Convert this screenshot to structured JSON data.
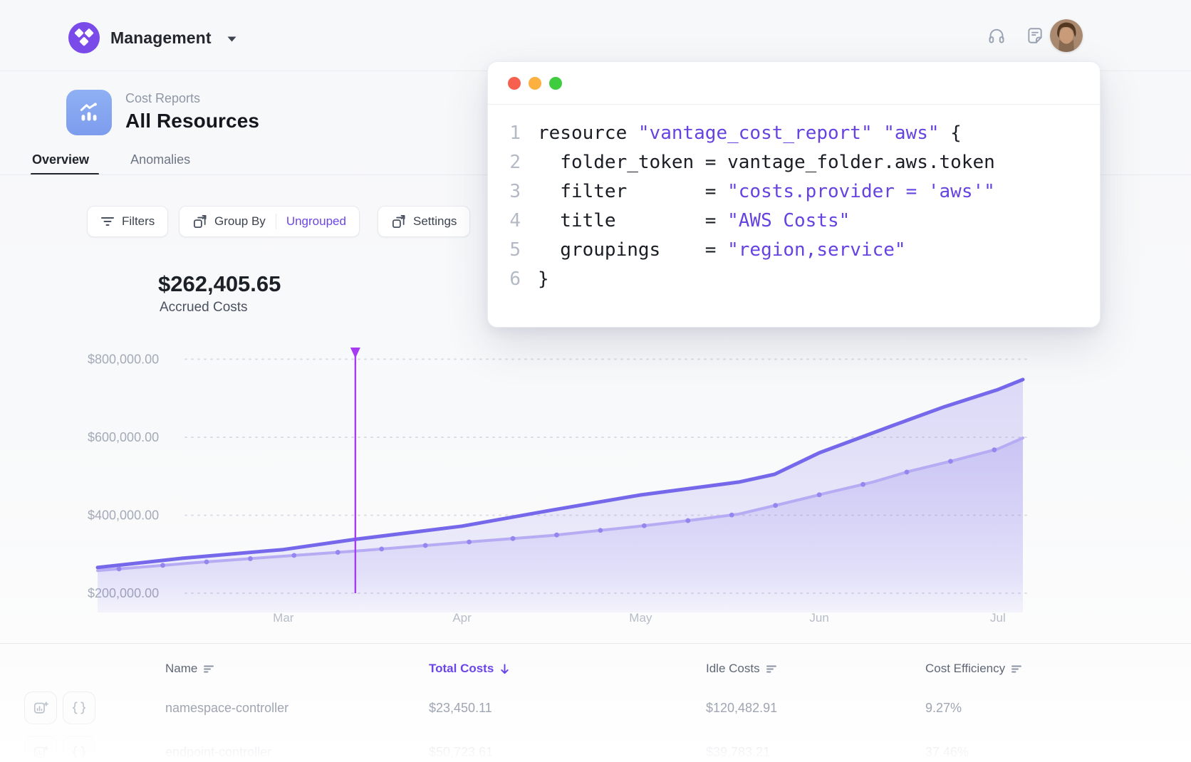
{
  "nav": {
    "brand": "Management",
    "icons": [
      "headphones-support-icon",
      "changelog-note-icon",
      "notification-bell-icon"
    ]
  },
  "header": {
    "section": "Cost Reports",
    "title": "All Resources",
    "tabs": [
      {
        "label": "Overview",
        "active": true
      },
      {
        "label": "Anomalies",
        "active": false
      }
    ]
  },
  "toolbar": {
    "filters_label": "Filters",
    "group_by_label": "Group By",
    "group_by_value": "Ungrouped",
    "settings_label": "Settings"
  },
  "summary": {
    "amount": "$262,405.65",
    "label": "Accrued Costs"
  },
  "chart_data": {
    "type": "area",
    "title": "Accrued Costs over time",
    "x_unit": "month",
    "x_tick_labels": [
      "Mar",
      "Apr",
      "May",
      "Jun",
      "Jul"
    ],
    "x_tick_positions": [
      0,
      1,
      2,
      3,
      4
    ],
    "xlim": [
      -1.04,
      4.14
    ],
    "ylim": [
      200000,
      830000
    ],
    "y_tick_values": [
      200000,
      400000,
      600000,
      800000
    ],
    "y_tick_labels": [
      "$200,000.00",
      "$400,000.00",
      "$600,000.00",
      "$800,000.00"
    ],
    "grid": "dashed-horizontal",
    "legend": "none",
    "cursor": {
      "x": 0.403,
      "color": "#a63bf2"
    },
    "series": [
      {
        "name": "total-costs",
        "color": "#7668ea",
        "width": 5,
        "dots": false,
        "points": [
          [
            -1.04,
            266000
          ],
          [
            -0.56,
            290000
          ],
          [
            0,
            312000
          ],
          [
            0.4,
            338000
          ],
          [
            1,
            372000
          ],
          [
            1.5,
            413000
          ],
          [
            2,
            452000
          ],
          [
            2.55,
            485000
          ],
          [
            2.75,
            505000
          ],
          [
            3,
            560000
          ],
          [
            3.4,
            628000
          ],
          [
            3.7,
            678000
          ],
          [
            4,
            722000
          ],
          [
            4.14,
            748000
          ]
        ]
      },
      {
        "name": "secondary-costs",
        "color": "#b7abf3",
        "width": 4,
        "dots": true,
        "dot_color": "#9486ef",
        "points": [
          [
            -1.04,
            258000
          ],
          [
            -0.5,
            278000
          ],
          [
            0,
            295000
          ],
          [
            0.4,
            308000
          ],
          [
            1,
            330000
          ],
          [
            1.5,
            348000
          ],
          [
            2,
            372000
          ],
          [
            2.3,
            388000
          ],
          [
            2.55,
            403000
          ],
          [
            2.8,
            430000
          ],
          [
            3.05,
            458000
          ],
          [
            3.3,
            485000
          ],
          [
            3.5,
            512000
          ],
          [
            3.75,
            540000
          ],
          [
            4,
            570000
          ],
          [
            4.14,
            598000
          ]
        ]
      }
    ]
  },
  "code_window": {
    "lines": [
      {
        "num": "1",
        "segments": [
          [
            "plain",
            "resource "
          ],
          [
            "str",
            "\"vantage_cost_report\" \"aws\""
          ],
          [
            "plain",
            " {"
          ]
        ]
      },
      {
        "num": "2",
        "segments": [
          [
            "plain",
            "  folder_token = vantage_folder.aws.token"
          ]
        ]
      },
      {
        "num": "3",
        "segments": [
          [
            "plain",
            "  filter       = "
          ],
          [
            "str",
            "\"costs.provider = 'aws'\""
          ]
        ]
      },
      {
        "num": "4",
        "segments": [
          [
            "plain",
            "  title        = "
          ],
          [
            "str",
            "\"AWS Costs\""
          ]
        ]
      },
      {
        "num": "5",
        "segments": [
          [
            "plain",
            "  groupings    = "
          ],
          [
            "str",
            "\"region,service\""
          ]
        ]
      },
      {
        "num": "6",
        "segments": [
          [
            "plain",
            "}"
          ]
        ]
      }
    ]
  },
  "table": {
    "columns": [
      {
        "label": "Name",
        "sort": "bars"
      },
      {
        "label": "Total Costs",
        "sort": "arrow-down",
        "active": true
      },
      {
        "label": "Idle Costs",
        "sort": "bars"
      },
      {
        "label": "Cost Efficiency",
        "sort": "bars"
      }
    ],
    "rows": [
      {
        "name": "namespace-controller",
        "total": "$23,450.11",
        "idle": "$120,482.91",
        "efficiency": "9.27%"
      },
      {
        "name": "endpoint-controller",
        "total": "$50,723.61",
        "idle": "$39,783.21",
        "efficiency": "37.46%"
      }
    ]
  },
  "colors": {
    "accent_purple": "#6b46e6",
    "brand_purple": "#7a4be8",
    "report_icon_blue": "#84a6f0",
    "line_primary": "#7668ea",
    "line_secondary": "#b7abf3",
    "cursor": "#a63bf2",
    "code_string": "#6643e0",
    "traffic_red": "#f7604f",
    "traffic_yellow": "#fbb040",
    "traffic_green": "#3fcc3f"
  }
}
